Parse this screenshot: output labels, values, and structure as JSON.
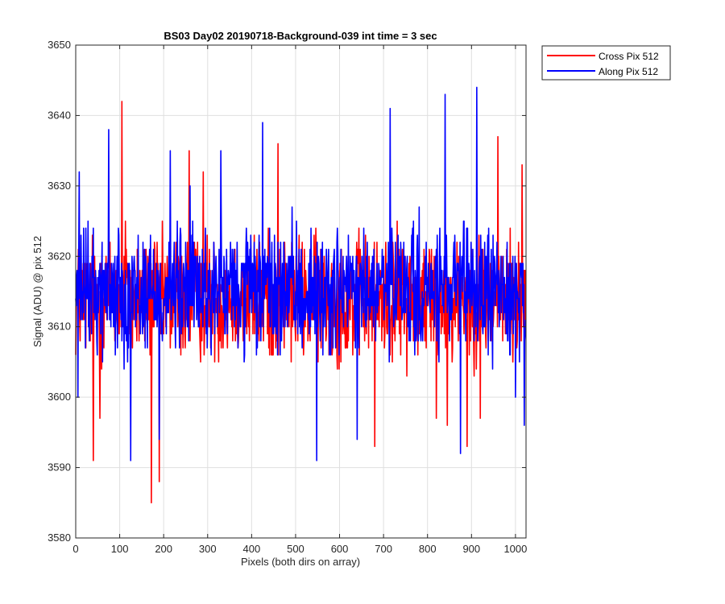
{
  "chart_data": {
    "type": "line",
    "title": "BS03 Day02 20190718-Background-039 int time = 3 sec",
    "xlabel": "Pixels (both dirs on array)",
    "ylabel": "Signal (ADU) @ pix 512",
    "xlim": [
      0,
      1024
    ],
    "ylim": [
      3580,
      3650
    ],
    "xticks": [
      0,
      100,
      200,
      300,
      400,
      500,
      600,
      700,
      800,
      900,
      1000
    ],
    "yticks": [
      3580,
      3590,
      3600,
      3610,
      3620,
      3630,
      3640,
      3650
    ],
    "grid": true,
    "legend_position": "outside top-right",
    "series": [
      {
        "name": "Cross Pix 512",
        "color": "#ff0000",
        "x_range": [
          0,
          1023
        ],
        "baseline": 3614,
        "spikes": [
          [
            105,
            3642
          ],
          [
            113,
            3625
          ],
          [
            172,
            3585
          ],
          [
            190,
            3588
          ],
          [
            258,
            3635
          ],
          [
            40,
            3591
          ],
          [
            820,
            3597
          ],
          [
            845,
            3596
          ],
          [
            890,
            3593
          ],
          [
            920,
            3597
          ],
          [
            960,
            3637
          ],
          [
            1015,
            3633
          ],
          [
            55,
            3597
          ],
          [
            290,
            3632
          ],
          [
            460,
            3636
          ],
          [
            680,
            3593
          ]
        ]
      },
      {
        "name": "Along Pix 512",
        "color": "#0000ff",
        "x_range": [
          0,
          1023
        ],
        "baseline": 3615,
        "spikes": [
          [
            8,
            3632
          ],
          [
            75,
            3638
          ],
          [
            125,
            3591
          ],
          [
            215,
            3635
          ],
          [
            425,
            3639
          ],
          [
            548,
            3591
          ],
          [
            640,
            3594
          ],
          [
            715,
            3641
          ],
          [
            840,
            3643
          ],
          [
            912,
            3644
          ],
          [
            875,
            3592
          ],
          [
            190,
            3594
          ],
          [
            5,
            3600
          ],
          [
            1020,
            3596
          ],
          [
            1000,
            3600
          ],
          [
            260,
            3630
          ],
          [
            330,
            3635
          ]
        ]
      }
    ]
  }
}
